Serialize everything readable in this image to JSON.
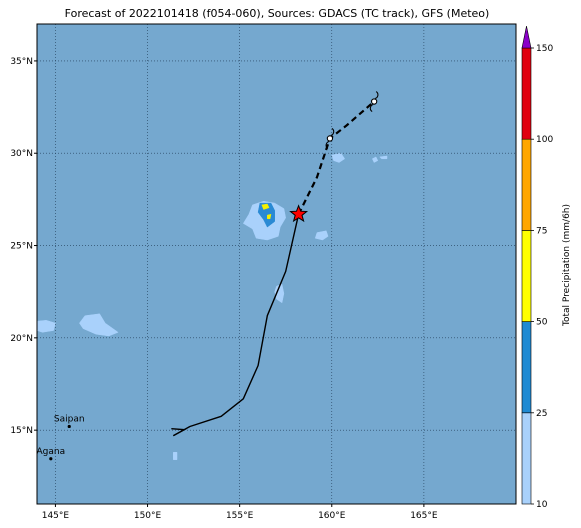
{
  "title": "Forecast of 2022101418 (f054-060), Sources: GDACS (TC track), GFS (Meteo)",
  "map": {
    "lon_range": [
      144,
      170
    ],
    "lat_range": [
      11,
      37
    ],
    "ocean_color": "#75a8cf",
    "gridlines": "dotted",
    "lon_ticks": [
      {
        "value": 145,
        "label": "145°E"
      },
      {
        "value": 150,
        "label": "150°E"
      },
      {
        "value": 155,
        "label": "155°E"
      },
      {
        "value": 160,
        "label": "160°E"
      },
      {
        "value": 165,
        "label": "165°E"
      }
    ],
    "lat_ticks": [
      {
        "value": 15,
        "label": "15°N"
      },
      {
        "value": 20,
        "label": "20°N"
      },
      {
        "value": 25,
        "label": "25°N"
      },
      {
        "value": 30,
        "label": "30°N"
      },
      {
        "value": 35,
        "label": "35°N"
      }
    ],
    "places": [
      {
        "name": "Saipan",
        "lon": 145.75,
        "lat": 15.2
      },
      {
        "name": "Agana",
        "lon": 144.75,
        "lat": 13.45
      }
    ]
  },
  "track": {
    "past": [
      [
        151.4,
        14.7
      ],
      [
        152.3,
        15.2
      ],
      [
        154.0,
        15.75
      ],
      [
        155.2,
        16.7
      ],
      [
        156.0,
        18.5
      ],
      [
        156.5,
        21.2
      ],
      [
        157.5,
        23.6
      ],
      [
        158.2,
        26.7
      ]
    ],
    "forecast": [
      [
        158.2,
        26.7
      ],
      [
        159.2,
        28.7
      ],
      [
        159.9,
        30.8
      ],
      [
        160.8,
        31.5
      ],
      [
        162.3,
        32.8
      ]
    ],
    "current_position": {
      "lon": 158.2,
      "lat": 26.7,
      "marker": "star-icon",
      "color": "#ff0000"
    },
    "forecast_points": [
      {
        "lon": 159.9,
        "lat": 30.8,
        "marker": "cyclone-icon"
      },
      {
        "lon": 162.3,
        "lat": 32.8,
        "marker": "cyclone-icon"
      }
    ]
  },
  "precip_areas": [
    {
      "level": "10-25",
      "color": "#a9d1fb",
      "points": [
        [
          155.7,
          27.2
        ],
        [
          156.3,
          27.4
        ],
        [
          156.9,
          27.3
        ],
        [
          157.4,
          27.0
        ],
        [
          157.5,
          26.5
        ],
        [
          157.2,
          26.0
        ],
        [
          157.1,
          25.5
        ],
        [
          156.5,
          25.3
        ],
        [
          155.9,
          25.4
        ],
        [
          155.7,
          25.9
        ],
        [
          155.2,
          26.2
        ],
        [
          155.5,
          26.7
        ]
      ]
    },
    {
      "level": "25-50",
      "color": "#2a8ad4",
      "points": [
        [
          156.1,
          27.3
        ],
        [
          156.7,
          27.3
        ],
        [
          156.9,
          26.9
        ],
        [
          156.9,
          26.3
        ],
        [
          156.5,
          26.0
        ],
        [
          156.3,
          26.4
        ],
        [
          156.0,
          26.8
        ]
      ]
    },
    {
      "level": "50-75",
      "color": "#f5f000",
      "points": [
        [
          156.2,
          27.2
        ],
        [
          156.5,
          27.25
        ],
        [
          156.6,
          27.05
        ],
        [
          156.3,
          26.95
        ]
      ]
    },
    {
      "level": "50-75",
      "color": "#f5f000",
      "points": [
        [
          156.5,
          26.65
        ],
        [
          156.7,
          26.7
        ],
        [
          156.65,
          26.45
        ],
        [
          156.5,
          26.45
        ]
      ]
    },
    {
      "level": "10-25",
      "color": "#a9d1fb",
      "points": [
        [
          159.2,
          25.7
        ],
        [
          159.7,
          25.8
        ],
        [
          159.8,
          25.5
        ],
        [
          159.5,
          25.3
        ],
        [
          159.1,
          25.4
        ]
      ]
    },
    {
      "level": "10-25",
      "color": "#a9d1fb",
      "points": [
        [
          160.0,
          29.9
        ],
        [
          160.5,
          30.0
        ],
        [
          160.7,
          29.7
        ],
        [
          160.4,
          29.5
        ],
        [
          160.1,
          29.6
        ]
      ]
    },
    {
      "level": "10-25",
      "color": "#a9d1fb",
      "points": [
        [
          162.2,
          29.7
        ],
        [
          162.4,
          29.8
        ],
        [
          162.5,
          29.6
        ],
        [
          162.3,
          29.5
        ]
      ]
    },
    {
      "level": "10-25",
      "color": "#a9d1fb",
      "points": [
        [
          162.6,
          29.8
        ],
        [
          163.0,
          29.85
        ],
        [
          163.0,
          29.7
        ],
        [
          162.7,
          29.7
        ]
      ]
    },
    {
      "level": "10-25",
      "color": "#a9d1fb",
      "points": [
        [
          157.0,
          22.8
        ],
        [
          157.3,
          22.9
        ],
        [
          157.4,
          22.4
        ],
        [
          157.3,
          21.9
        ],
        [
          157.0,
          22.1
        ],
        [
          156.9,
          22.5
        ]
      ]
    },
    {
      "level": "10-25",
      "color": "#a9d1fb",
      "points": [
        [
          144.0,
          20.9
        ],
        [
          144.5,
          20.95
        ],
        [
          145.0,
          20.8
        ],
        [
          144.9,
          20.4
        ],
        [
          144.3,
          20.3
        ],
        [
          144.0,
          20.4
        ]
      ]
    },
    {
      "level": "10-25",
      "color": "#a9d1fb",
      "points": [
        [
          146.6,
          21.2
        ],
        [
          147.4,
          21.3
        ],
        [
          147.7,
          20.8
        ],
        [
          148.4,
          20.3
        ],
        [
          147.9,
          20.1
        ],
        [
          147.2,
          20.2
        ],
        [
          146.5,
          20.5
        ],
        [
          146.3,
          20.8
        ]
      ]
    },
    {
      "level": "10-25",
      "color": "#a9d1fb",
      "points": [
        [
          151.4,
          13.8
        ],
        [
          151.6,
          13.8
        ],
        [
          151.6,
          13.4
        ],
        [
          151.4,
          13.4
        ]
      ]
    }
  ],
  "colorbar": {
    "label": "Total Precipitation (mm/6h)",
    "ticks": [
      "10",
      "25",
      "50",
      "75",
      "100",
      "150"
    ],
    "segments": [
      {
        "from": "10",
        "to": "25",
        "color": "#a9d1fb"
      },
      {
        "from": "25",
        "to": "50",
        "color": "#1f8ad3"
      },
      {
        "from": "50",
        "to": "75",
        "color": "#ffff00"
      },
      {
        "from": "75",
        "to": "100",
        "color": "#ffa600"
      },
      {
        "from": "100",
        "to": "150",
        "color": "#e0000f"
      }
    ],
    "extend_color": "#8a00c8"
  }
}
